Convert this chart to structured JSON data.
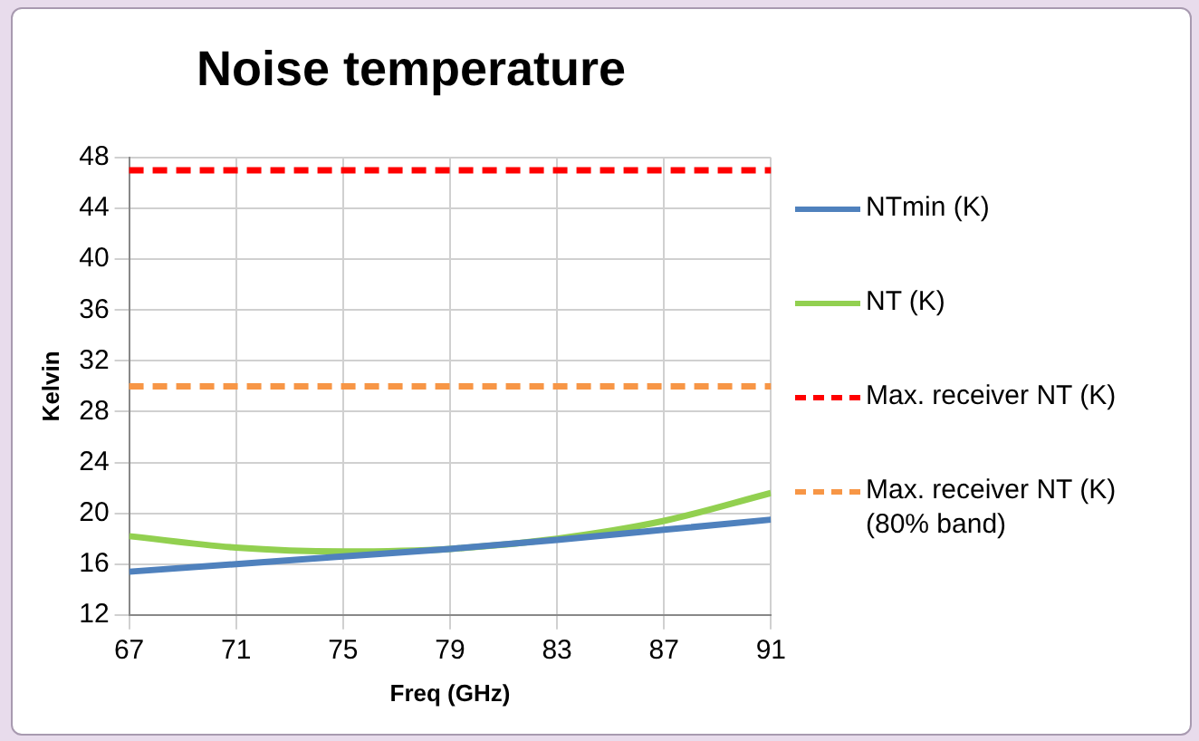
{
  "chart_data": {
    "type": "line",
    "title": "Noise temperature",
    "xlabel": "Freq (GHz)",
    "ylabel": "Kelvin",
    "x": [
      67,
      71,
      75,
      79,
      83,
      87,
      91
    ],
    "xlim": [
      67,
      91
    ],
    "xticks": [
      67,
      71,
      75,
      79,
      83,
      87,
      91
    ],
    "ylim": [
      12,
      48
    ],
    "yticks": [
      12,
      16,
      20,
      24,
      28,
      32,
      36,
      40,
      44,
      48
    ],
    "grid": true,
    "legend": "right",
    "marker": "none",
    "series": [
      {
        "name": "NTmin (K)",
        "color": "#4f81bd",
        "line_style": "solid",
        "values": [
          15.4,
          16.0,
          16.6,
          17.2,
          17.9,
          18.7,
          19.5
        ]
      },
      {
        "name": "NT (K)",
        "color": "#92d050",
        "line_style": "solid",
        "values": [
          18.2,
          17.3,
          17.0,
          17.2,
          18.0,
          19.4,
          21.6
        ]
      }
    ],
    "ref_lines": [
      {
        "axis": "y",
        "value": 47,
        "label": "Max. receiver NT (K)",
        "color": "#ff0000",
        "line_style": "dashed"
      },
      {
        "axis": "y",
        "value": 30,
        "label": "Max. receiver NT (K) (80% band)",
        "color": "#f79646",
        "line_style": "dashed"
      }
    ]
  }
}
